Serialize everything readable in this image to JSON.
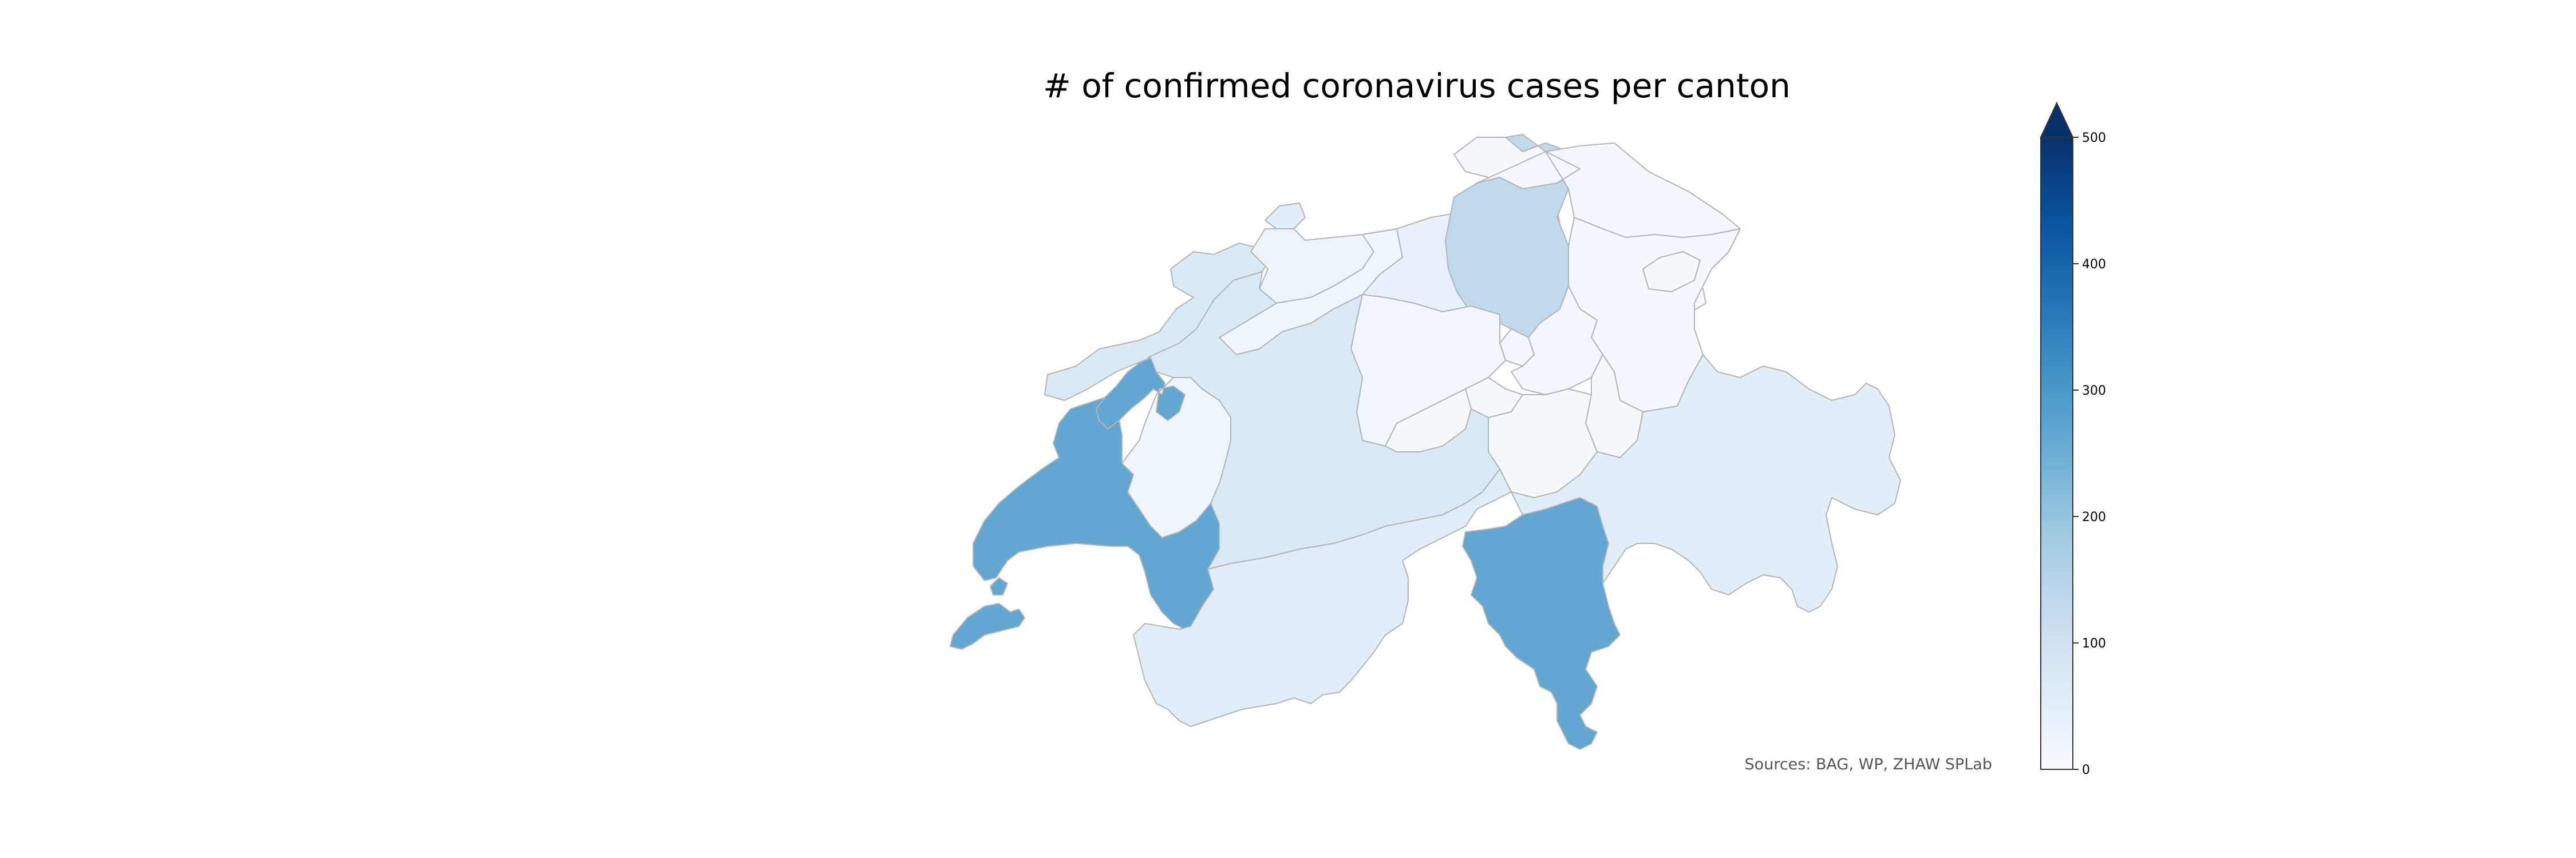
{
  "title": "# of confirmed coronavirus cases per canton",
  "source": "Sources: BAG, WP, ZHAW SPLab",
  "colorbar": {
    "min": 0,
    "max": 500,
    "extend": "max",
    "ticks": [
      "0",
      "100",
      "200",
      "300",
      "400",
      "500"
    ],
    "colormap": "Blues"
  },
  "colors": {
    "border": "#b4b4b4",
    "low": "#f7fbff",
    "high": "#08306b"
  },
  "map_data": {
    "type": "choropleth",
    "region": "Switzerland",
    "cantons": [
      {
        "id": "ZH",
        "value": 133
      },
      {
        "id": "VD",
        "value": 265
      },
      {
        "id": "TI",
        "value": 265
      },
      {
        "id": "GE",
        "value": 265
      },
      {
        "id": "NE",
        "value": 265
      },
      {
        "id": "BE",
        "value": 72
      },
      {
        "id": "VS",
        "value": 55
      },
      {
        "id": "GR",
        "value": 55
      },
      {
        "id": "FR",
        "value": 22
      },
      {
        "id": "JU",
        "value": 72
      },
      {
        "id": "BS",
        "value": 55
      },
      {
        "id": "BL",
        "value": 28
      },
      {
        "id": "SO",
        "value": 18
      },
      {
        "id": "AG",
        "value": 38
      },
      {
        "id": "LU",
        "value": 14
      },
      {
        "id": "SZ",
        "value": 14
      },
      {
        "id": "ZG",
        "value": 14
      },
      {
        "id": "UR",
        "value": 8
      },
      {
        "id": "OW",
        "value": 6
      },
      {
        "id": "NW",
        "value": 6
      },
      {
        "id": "GL",
        "value": 6
      },
      {
        "id": "SG",
        "value": 12
      },
      {
        "id": "AR",
        "value": 6
      },
      {
        "id": "AI",
        "value": 4
      },
      {
        "id": "TG",
        "value": 12
      },
      {
        "id": "SH",
        "value": 6
      }
    ]
  }
}
